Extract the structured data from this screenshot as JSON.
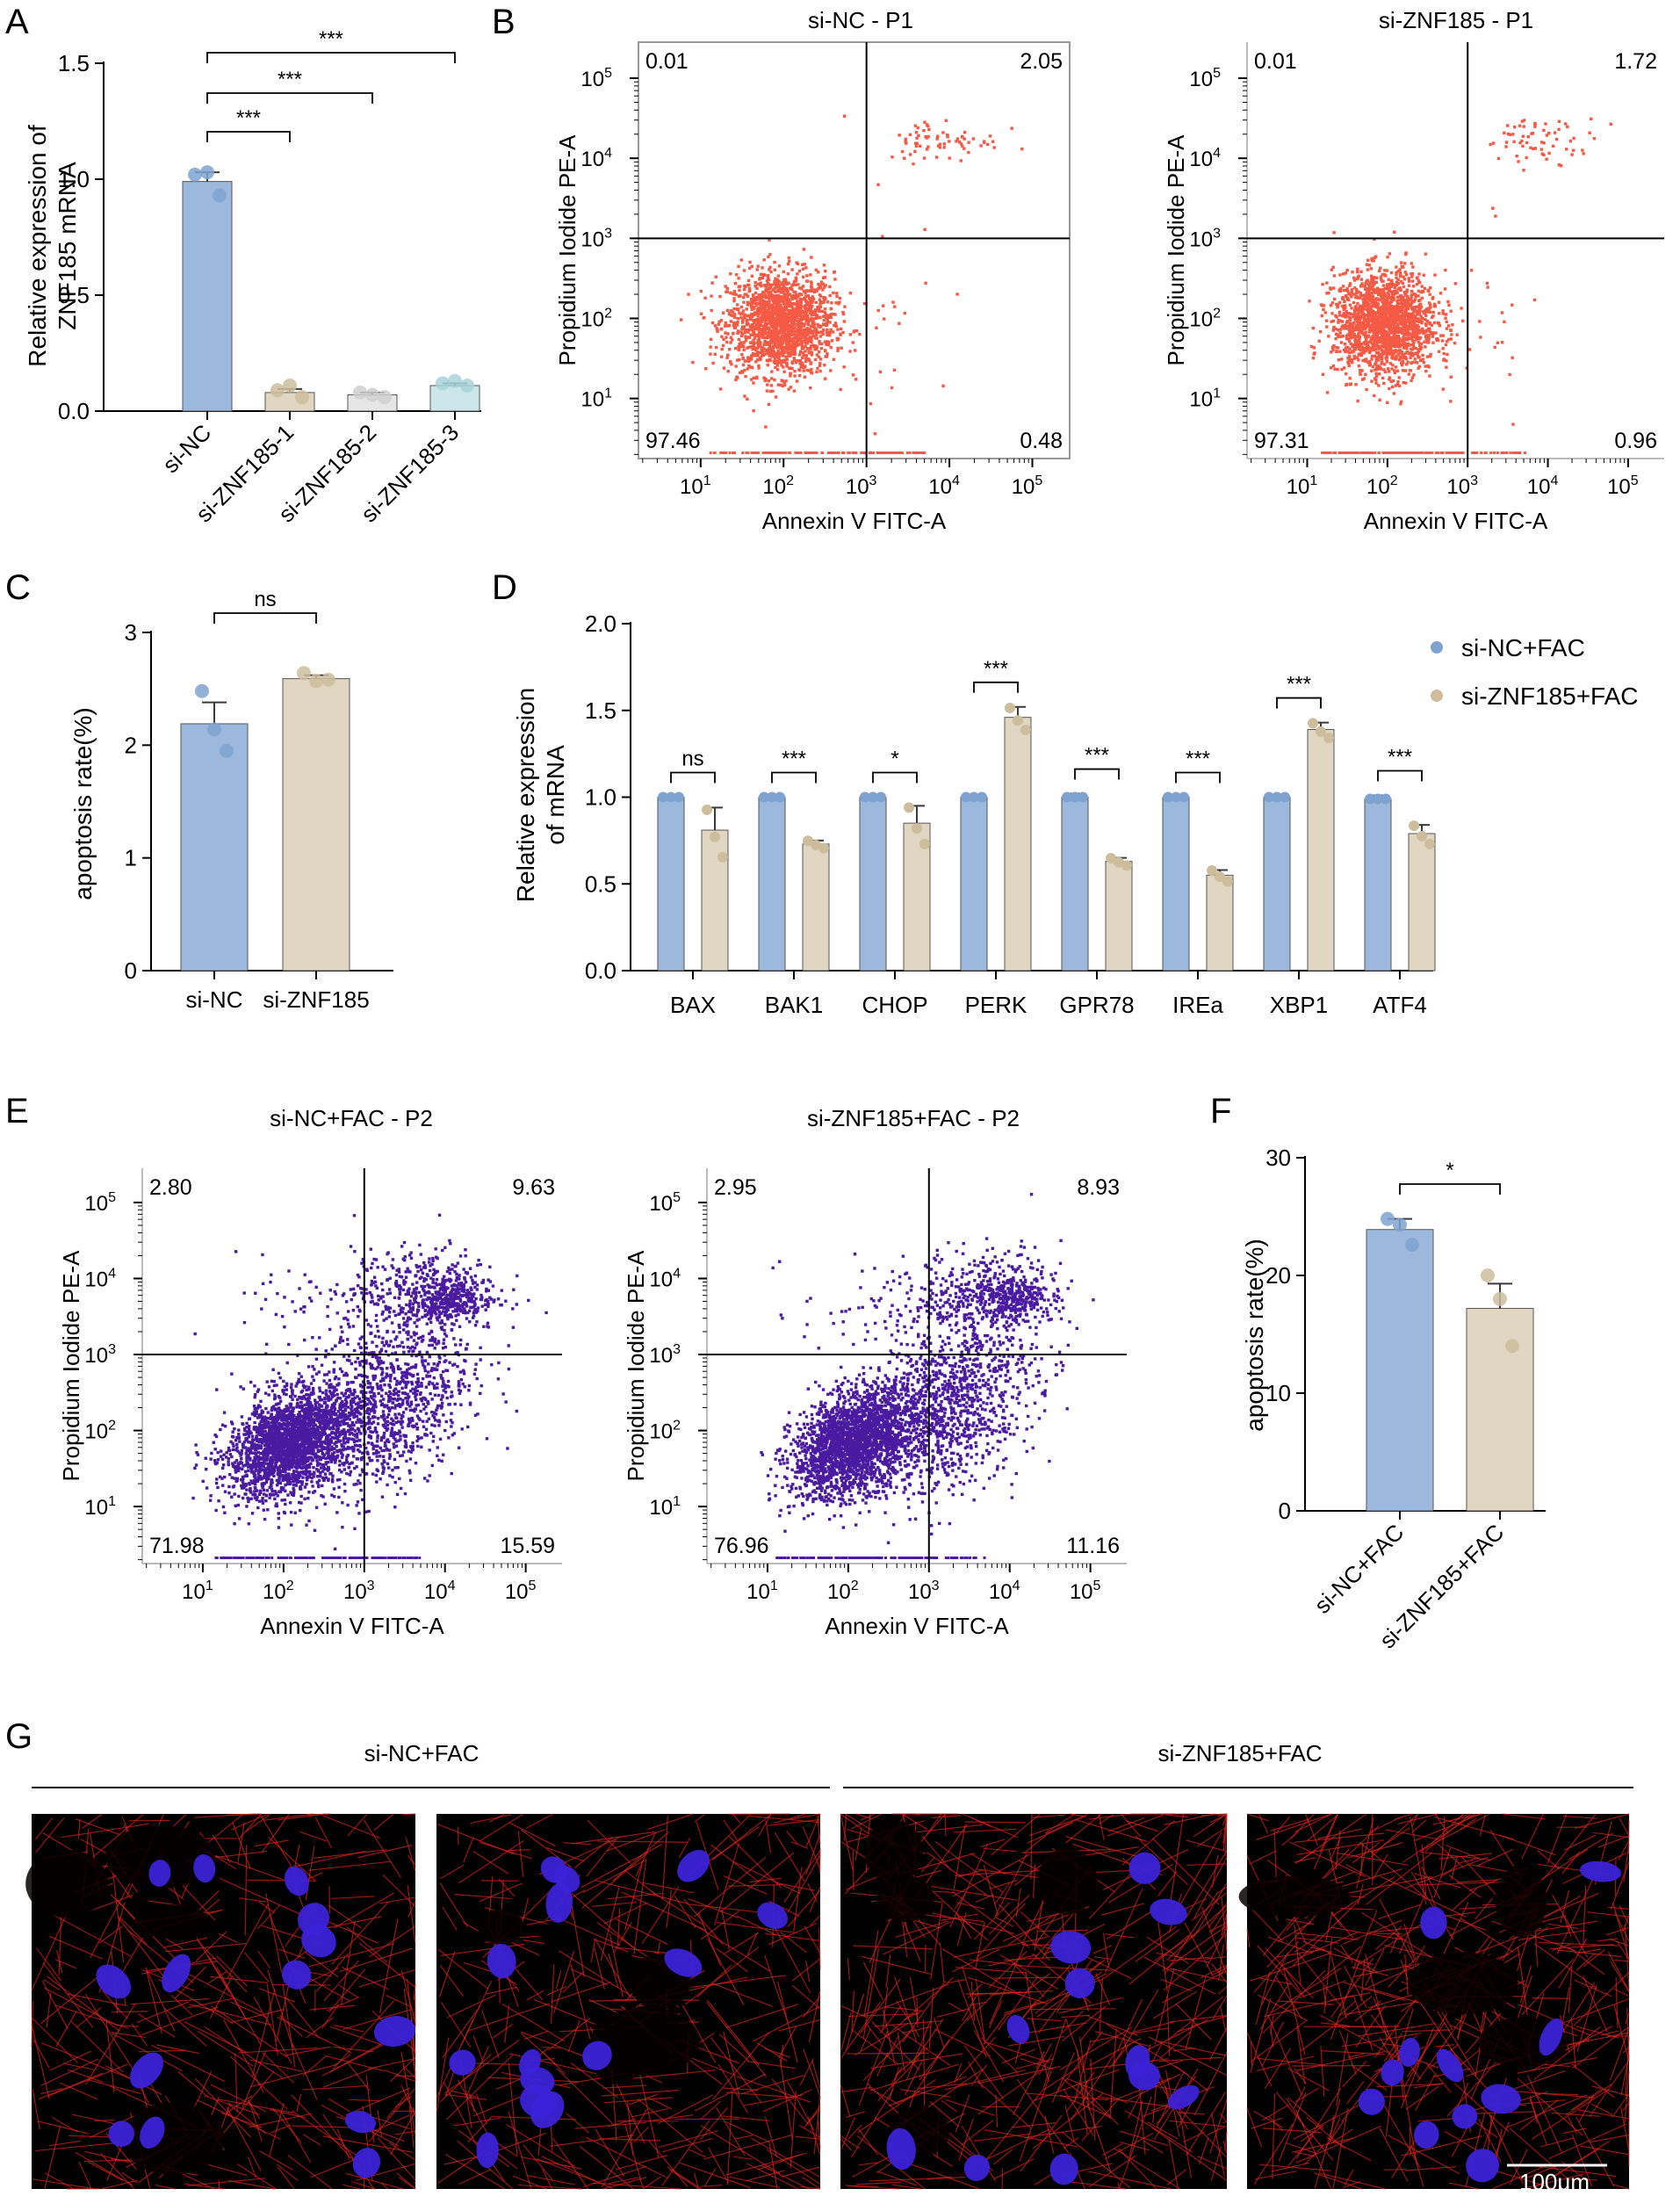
{
  "panels": {
    "A": "A",
    "B": "B",
    "C": "C",
    "D": "D",
    "E": "E",
    "F": "F",
    "G": "G"
  },
  "colors": {
    "blue": "#9db8dd",
    "blue_dot": "#7fa3d1",
    "beige": "#e0d6c2",
    "beige_dot": "#cdbd9c",
    "gray": "#e6e6e6",
    "teal": "#cde6ea",
    "red_dot": "#f45a45",
    "purple_dot": "#4a1aa0",
    "err": "#3a3a3a"
  },
  "chart_data": [
    {
      "id": "A",
      "type": "bar",
      "ylabel_lines": [
        "Relative expression of",
        "ZNF185 mRNA"
      ],
      "ylim": [
        0,
        1.5
      ],
      "yticks": [
        "0.0",
        "0.5",
        "1.0",
        "1.5"
      ],
      "ytick_values": [
        0,
        0.5,
        1.0,
        1.5
      ],
      "categories": [
        "si-NC",
        "si-ZNF185-1",
        "si-ZNF185-2",
        "si-ZNF185-3"
      ],
      "values": [
        0.99,
        0.08,
        0.07,
        0.11
      ],
      "errors": [
        0.04,
        0.015,
        0.01,
        0.01
      ],
      "points": [
        [
          1.02,
          1.03,
          0.93
        ],
        [
          0.09,
          0.11,
          0.06
        ],
        [
          0.08,
          0.07,
          0.06
        ],
        [
          0.12,
          0.13,
          0.11
        ]
      ],
      "bar_colors": [
        "#9db8dd",
        "#e0d6c2",
        "#e6e6e6",
        "#cde6ea"
      ],
      "dot_colors": [
        "#7fa3d1",
        "#cdbd9c",
        "#cfcfcf",
        "#a8d3da"
      ],
      "significance": [
        {
          "from": 0,
          "to": 1,
          "label": "***"
        },
        {
          "from": 0,
          "to": 2,
          "label": "***"
        },
        {
          "from": 0,
          "to": 3,
          "label": "***"
        }
      ]
    },
    {
      "id": "C",
      "type": "bar",
      "ylabel": "apoptosis rate(%)",
      "ylim": [
        0,
        3
      ],
      "yticks": [
        "0",
        "1",
        "2",
        "3"
      ],
      "ytick_values": [
        0,
        1,
        2,
        3
      ],
      "categories": [
        "si-NC",
        "si-ZNF185"
      ],
      "values": [
        2.19,
        2.59
      ],
      "errors": [
        0.19,
        0.03
      ],
      "points": [
        [
          2.48,
          2.14,
          1.95
        ],
        [
          2.64,
          2.57,
          2.58
        ]
      ],
      "bar_colors": [
        "#9db8dd",
        "#e0d6c2"
      ],
      "dot_colors": [
        "#7fa3d1",
        "#cdbd9c"
      ],
      "significance": [
        {
          "from": 0,
          "to": 1,
          "label": "ns"
        }
      ]
    },
    {
      "id": "D",
      "type": "bar",
      "ylabel_lines": [
        "Relative expression",
        "of mRNA"
      ],
      "ylim": [
        0,
        2.0
      ],
      "yticks": [
        "0.0",
        "0.5",
        "1.0",
        "1.5",
        "2.0"
      ],
      "ytick_values": [
        0,
        0.5,
        1.0,
        1.5,
        2.0
      ],
      "categories": [
        "BAX",
        "BAK1",
        "CHOP",
        "PERK",
        "GPR78",
        "IREa",
        "XBP1",
        "ATF4"
      ],
      "series": [
        {
          "name": "si-NC+FAC",
          "values": [
            1.0,
            1.0,
            1.0,
            1.0,
            1.0,
            1.0,
            1.0,
            0.99
          ],
          "errors": [
            0,
            0,
            0,
            0,
            0.02,
            0,
            0,
            0.02
          ]
        },
        {
          "name": "si-ZNF185+FAC",
          "values": [
            0.81,
            0.73,
            0.85,
            1.46,
            0.63,
            0.55,
            1.39,
            0.79
          ],
          "errors": [
            0.13,
            0.02,
            0.1,
            0.06,
            0.02,
            0.03,
            0.04,
            0.05
          ]
        }
      ],
      "significance": [
        "ns",
        "***",
        "*",
        "***",
        "***",
        "***",
        "***",
        "***"
      ]
    },
    {
      "id": "F",
      "type": "bar",
      "ylabel": "apoptosis rate(%)",
      "ylim": [
        0,
        30
      ],
      "yticks": [
        "0",
        "10",
        "20",
        "30"
      ],
      "ytick_values": [
        0,
        10,
        20,
        30
      ],
      "categories": [
        "si-NC+FAC",
        "si-ZNF185+FAC"
      ],
      "values": [
        23.9,
        17.2
      ],
      "errors": [
        0.9,
        2.1
      ],
      "points": [
        [
          24.8,
          24.3,
          22.6
        ],
        [
          20.0,
          18.0,
          14.0
        ]
      ],
      "bar_colors": [
        "#9db8dd",
        "#e0d6c2"
      ],
      "dot_colors": [
        "#7fa3d1",
        "#cdbd9c"
      ],
      "significance": [
        {
          "from": 0,
          "to": 1,
          "label": "*"
        }
      ]
    },
    {
      "id": "B1",
      "type": "scatter",
      "title": "si-NC - P1",
      "xlabel": "Annexin V FITC-A",
      "ylabel": "Propidium Iodide PE-A",
      "quadrants": {
        "ul": "0.01",
        "ur": "2.05",
        "ll": "97.46",
        "lr": "0.48"
      }
    },
    {
      "id": "B2",
      "type": "scatter",
      "title": "si-ZNF185 - P1",
      "xlabel": "Annexin V FITC-A",
      "ylabel": "Propidium Iodide PE-A",
      "quadrants": {
        "ul": "0.01",
        "ur": "1.72",
        "ll": "97.31",
        "lr": "0.96"
      }
    },
    {
      "id": "E1",
      "type": "scatter",
      "title": "si-NC+FAC - P2",
      "xlabel": "Annexin V FITC-A",
      "ylabel": "Propidium Iodide PE-A",
      "quadrants": {
        "ul": "2.80",
        "ur": "9.63",
        "ll": "71.98",
        "lr": "15.59"
      }
    },
    {
      "id": "E2",
      "type": "scatter",
      "title": "si-ZNF185+FAC - P2",
      "xlabel": "Annexin V FITC-A",
      "ylabel": "Propidium Iodide PE-A",
      "quadrants": {
        "ul": "2.95",
        "ur": "8.93",
        "ll": "76.96",
        "lr": "11.16"
      }
    }
  ],
  "log_ticks": [
    "10",
    "1",
    "10",
    "2",
    "10",
    "3",
    "10",
    "4",
    "10",
    "5"
  ],
  "legend_D": [
    "si-NC+FAC",
    "si-ZNF185+FAC"
  ],
  "panel_G": {
    "group1": "si-NC+FAC",
    "group2": "si-ZNF185+FAC",
    "scale_bar": "100μm"
  }
}
